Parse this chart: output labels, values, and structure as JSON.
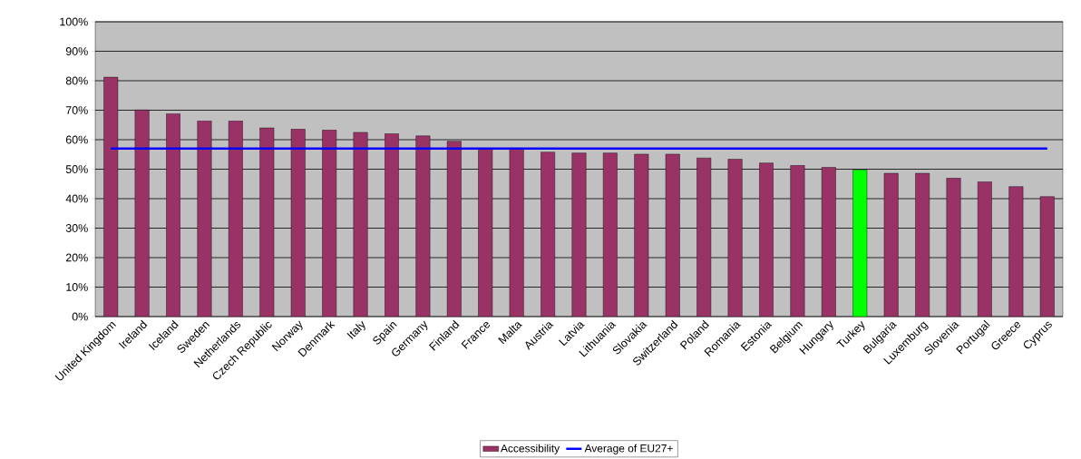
{
  "chart_data": {
    "type": "bar",
    "categories": [
      "United Kingdom",
      "Ireland",
      "Iceland",
      "Sweden",
      "Netherlands",
      "Czech Republic",
      "Norway",
      "Denmark",
      "Italy",
      "Spain",
      "Germany",
      "Finland",
      "France",
      "Malta",
      "Austria",
      "Latvia",
      "Lithuania",
      "Slovakia",
      "Switzerland",
      "Poland",
      "Romania",
      "Estonia",
      "Belgium",
      "Hungary",
      "Turkey",
      "Bulgaria",
      "Luxemburg",
      "Slovenia",
      "Portugal",
      "Greece",
      "Cyprus"
    ],
    "series": [
      {
        "name": "Accessibility",
        "color": "#993366",
        "colors": [
          "#993366",
          "#993366",
          "#993366",
          "#993366",
          "#993366",
          "#993366",
          "#993366",
          "#993366",
          "#993366",
          "#993366",
          "#993366",
          "#993366",
          "#993366",
          "#993366",
          "#993366",
          "#993366",
          "#993366",
          "#993366",
          "#993366",
          "#993366",
          "#993366",
          "#993366",
          "#993366",
          "#993366",
          "#00ff00",
          "#993366",
          "#993366",
          "#993366",
          "#993366",
          "#993366",
          "#993366"
        ],
        "values": [
          81.2,
          70.1,
          68.8,
          66.4,
          66.4,
          64.0,
          63.6,
          63.3,
          62.5,
          62.0,
          61.3,
          59.5,
          57,
          57,
          55.8,
          55.5,
          55.5,
          55.1,
          55.1,
          53.8,
          53.4,
          52.1,
          51.3,
          50.6,
          49.8,
          48.6,
          48.6,
          47.0,
          45.7,
          44.1,
          40.7
        ]
      },
      {
        "name": "Average of EU27+",
        "type": "line",
        "color": "#0000ff",
        "values": [
          57,
          57,
          57,
          57,
          57,
          57,
          57,
          57,
          57,
          57,
          57,
          57,
          57,
          57,
          57,
          57,
          57,
          57,
          57,
          57,
          57,
          57,
          57,
          57,
          57,
          57,
          57,
          57,
          57,
          57,
          57
        ]
      }
    ],
    "ylim": [
      0,
      100
    ],
    "yticks": [
      {
        "value": 0,
        "label": "0%"
      },
      {
        "value": 10,
        "label": "10%"
      },
      {
        "value": 20,
        "label": "20%"
      },
      {
        "value": 30,
        "label": "30%"
      },
      {
        "value": 40,
        "label": "40%"
      },
      {
        "value": 50,
        "label": "50%"
      },
      {
        "value": 60,
        "label": "60%"
      },
      {
        "value": 70,
        "label": "70%"
      },
      {
        "value": 80,
        "label": "80%"
      },
      {
        "value": 90,
        "label": "90%"
      },
      {
        "value": 100,
        "label": "100%"
      }
    ],
    "grid": "y",
    "legend": "bottom"
  }
}
